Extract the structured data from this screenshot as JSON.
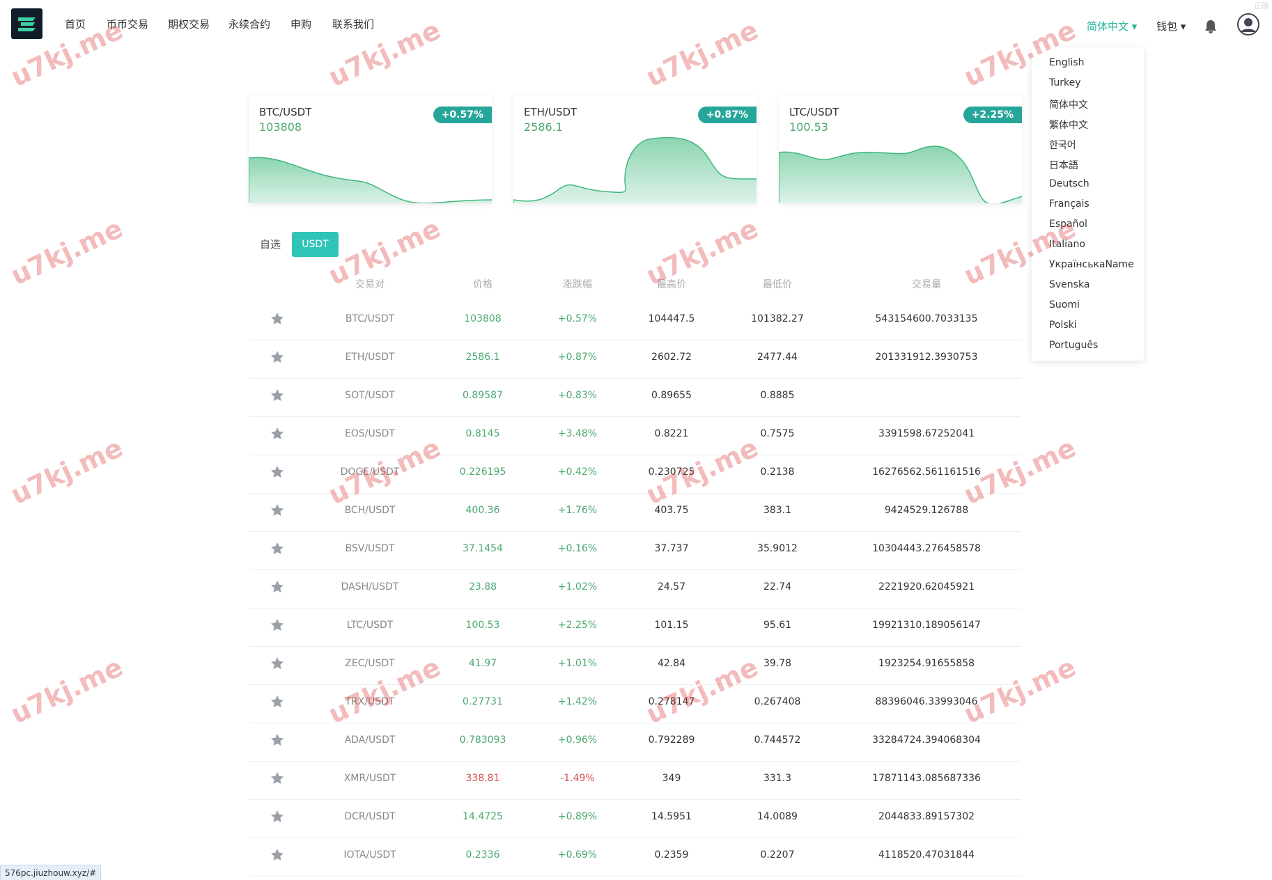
{
  "nav": {
    "items": [
      "首页",
      "币币交易",
      "期权交易",
      "永续合约",
      "申购",
      "联系我们"
    ],
    "language": "简体中文",
    "wallet": "钱包",
    "corner": "正确"
  },
  "languages": [
    "English",
    "Turkey",
    "简体中文",
    "繁体中文",
    "한국어",
    "日本語",
    "Deutsch",
    "Français",
    "Español",
    "Italiano",
    "УкраїнськаName",
    "Svenska",
    "Suomi",
    "Polski",
    "Português"
  ],
  "cards": [
    {
      "pair": "BTC/USDT",
      "price": "103808",
      "change": "+0.57%"
    },
    {
      "pair": "ETH/USDT",
      "price": "2586.1",
      "change": "+0.87%"
    },
    {
      "pair": "LTC/USDT",
      "price": "100.53",
      "change": "+2.25%"
    }
  ],
  "tabs": [
    "自选",
    "USDT"
  ],
  "table": {
    "headers": [
      "交易对",
      "价格",
      "涨跌幅",
      "最高价",
      "最低价",
      "交易量"
    ],
    "rows": [
      [
        "BTC/USDT",
        "103808",
        "+0.57%",
        "104447.5",
        "101382.27",
        "543154600.7033135"
      ],
      [
        "ETH/USDT",
        "2586.1",
        "+0.87%",
        "2602.72",
        "2477.44",
        "201331912.3930753"
      ],
      [
        "SOT/USDT",
        "0.89587",
        "+0.83%",
        "0.89655",
        "0.8885",
        null
      ],
      [
        "EOS/USDT",
        "0.8145",
        "+3.48%",
        "0.8221",
        "0.7575",
        "3391598.67252041"
      ],
      [
        "DOGE/USDT",
        "0.226195",
        "+0.42%",
        "0.230725",
        "0.2138",
        "16276562.561161516"
      ],
      [
        "BCH/USDT",
        "400.36",
        "+1.76%",
        "403.75",
        "383.1",
        "9424529.126788"
      ],
      [
        "BSV/USDT",
        "37.1454",
        "+0.16%",
        "37.737",
        "35.9012",
        "10304443.276458578"
      ],
      [
        "DASH/USDT",
        "23.88",
        "+1.02%",
        "24.57",
        "22.74",
        "2221920.62045921"
      ],
      [
        "LTC/USDT",
        "100.53",
        "+2.25%",
        "101.15",
        "95.61",
        "19921310.189056147"
      ],
      [
        "ZEC/USDT",
        "41.97",
        "+1.01%",
        "42.84",
        "39.78",
        "1923254.91655858"
      ],
      [
        "TRX/USDT",
        "0.27731",
        "+1.42%",
        "0.278147",
        "0.267408",
        "88396046.33993046"
      ],
      [
        "ADA/USDT",
        "0.783093",
        "+0.96%",
        "0.792289",
        "0.744572",
        "33284724.394068304"
      ],
      [
        "XMR/USDT",
        "338.81",
        "-1.49%",
        "349",
        "331.3",
        "17871143.085687336"
      ],
      [
        "DCR/USDT",
        "14.4725",
        "+0.89%",
        "14.5951",
        "14.0089",
        "2044833.89157302"
      ],
      [
        "IOTA/USDT",
        "0.2336",
        "+0.69%",
        "0.2359",
        "0.2207",
        "4118520.47031844"
      ]
    ]
  },
  "watermark": "u7kj.me",
  "status_url": "576pc.jiuzhouw.xyz/#"
}
